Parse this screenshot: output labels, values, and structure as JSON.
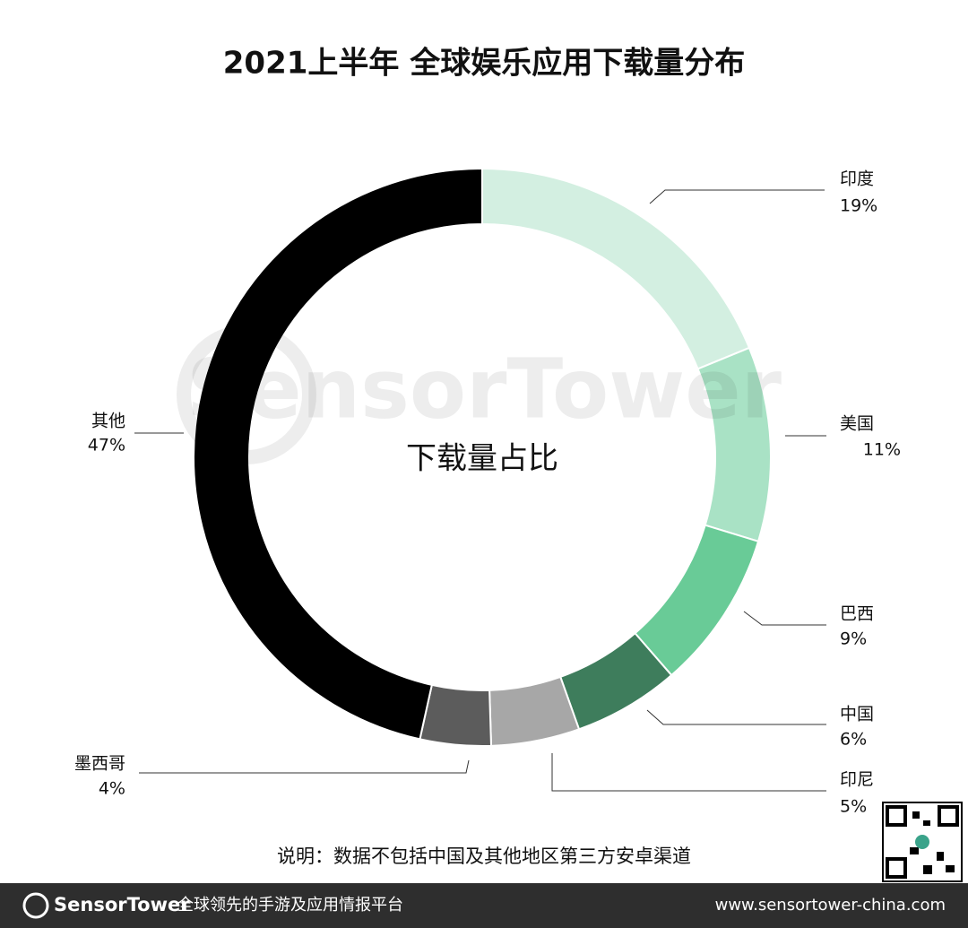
{
  "chart_data": {
    "type": "donut",
    "title": "2021上半年 全球娱乐应用下载量分布",
    "center_label": "下载量占比",
    "categories": [
      "印度",
      "美国",
      "巴西",
      "中国",
      "印尼",
      "墨西哥",
      "其他"
    ],
    "values": [
      19,
      11,
      9,
      6,
      5,
      4,
      47
    ],
    "value_labels": [
      "19%",
      "11%",
      "9%",
      "6%",
      "5%",
      "4%",
      "47%"
    ],
    "colors": [
      "#d3efe1",
      "#a9e2c5",
      "#69cb97",
      "#3e7d5c",
      "#a7a7a7",
      "#5c5c5c",
      "#000000"
    ],
    "note": "说明：数据不包括中国及其他地区第三方安卓渠道",
    "watermark": "SensorTower"
  },
  "footer": {
    "brand": "SensorTower",
    "slogan": "全球领先的手游及应用情报平台",
    "url": "www.sensortower-china.com"
  }
}
